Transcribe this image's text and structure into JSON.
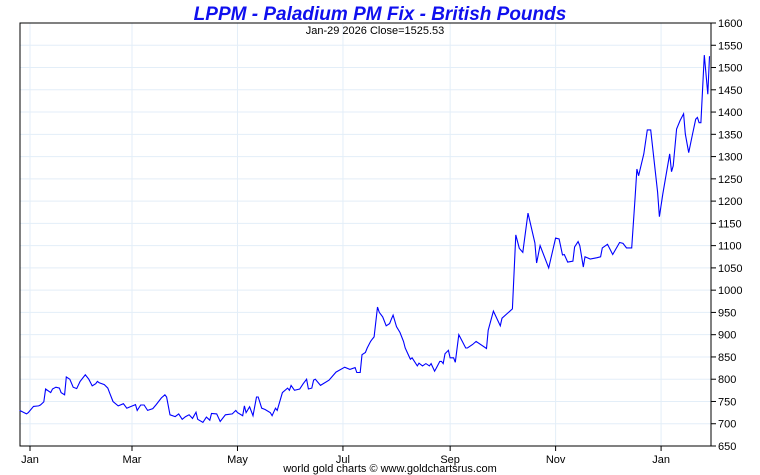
{
  "chart_data": {
    "type": "line",
    "title": "LPPM - Paladium PM Fix - British Pounds",
    "subtitle": "Jan-29  2026   Close=1525.53",
    "footer": "world gold charts © www.goldchartsrus.com",
    "x_unit": "days since Jan 1 2025",
    "xlim": [
      -6,
      399
    ],
    "ylim": [
      650,
      1600
    ],
    "y_ticks": [
      650,
      700,
      750,
      800,
      850,
      900,
      950,
      1000,
      1050,
      1100,
      1150,
      1200,
      1250,
      1300,
      1350,
      1400,
      1450,
      1500,
      1550,
      1600
    ],
    "x_ticks": [
      {
        "label": "Jan",
        "day": 0
      },
      {
        "label": "Mar",
        "day": 59
      },
      {
        "label": "May",
        "day": 120
      },
      {
        "label": "Jul",
        "day": 181
      },
      {
        "label": "Sep",
        "day": 243
      },
      {
        "label": "Nov",
        "day": 304
      },
      {
        "label": "Jan",
        "day": 365
      }
    ],
    "grid": true,
    "line_color": "#0000ff",
    "series": [
      {
        "name": "Palladium PM Fix GBP",
        "points": [
          [
            -6,
            730
          ],
          [
            -2,
            722
          ],
          [
            -1,
            725
          ],
          [
            2,
            739
          ],
          [
            5,
            740
          ],
          [
            6,
            742
          ],
          [
            8,
            749
          ],
          [
            9,
            778
          ],
          [
            12,
            770
          ],
          [
            13,
            778
          ],
          [
            15,
            782
          ],
          [
            17,
            780
          ],
          [
            18,
            770
          ],
          [
            20,
            765
          ],
          [
            21,
            805
          ],
          [
            23,
            800
          ],
          [
            25,
            782
          ],
          [
            27,
            779
          ],
          [
            29,
            795
          ],
          [
            32,
            810
          ],
          [
            34,
            800
          ],
          [
            36,
            785
          ],
          [
            38,
            790
          ],
          [
            39,
            795
          ],
          [
            40,
            792
          ],
          [
            43,
            788
          ],
          [
            45,
            780
          ],
          [
            46,
            770
          ],
          [
            48,
            750
          ],
          [
            51,
            740
          ],
          [
            54,
            745
          ],
          [
            56,
            735
          ],
          [
            58,
            738
          ],
          [
            61,
            743
          ],
          [
            62,
            730
          ],
          [
            64,
            742
          ],
          [
            66,
            742
          ],
          [
            68,
            730
          ],
          [
            71,
            734
          ],
          [
            73,
            743
          ],
          [
            76,
            758
          ],
          [
            78,
            765
          ],
          [
            79,
            760
          ],
          [
            81,
            720
          ],
          [
            84,
            716
          ],
          [
            86,
            722
          ],
          [
            88,
            710
          ],
          [
            90,
            716
          ],
          [
            92,
            720
          ],
          [
            94,
            712
          ],
          [
            96,
            726
          ],
          [
            97,
            710
          ],
          [
            100,
            703
          ],
          [
            102,
            715
          ],
          [
            104,
            708
          ],
          [
            105,
            723
          ],
          [
            108,
            722
          ],
          [
            110,
            705
          ],
          [
            113,
            720
          ],
          [
            117,
            722
          ],
          [
            119,
            730
          ],
          [
            120,
            725
          ],
          [
            123,
            718
          ],
          [
            124,
            740
          ],
          [
            125,
            725
          ],
          [
            127,
            738
          ],
          [
            129,
            718
          ],
          [
            131,
            760
          ],
          [
            132,
            760
          ],
          [
            134,
            735
          ],
          [
            136,
            732
          ],
          [
            139,
            725
          ],
          [
            140,
            718
          ],
          [
            142,
            735
          ],
          [
            143,
            730
          ],
          [
            146,
            770
          ],
          [
            149,
            780
          ],
          [
            150,
            775
          ],
          [
            151,
            786
          ],
          [
            153,
            775
          ],
          [
            156,
            778
          ],
          [
            158,
            790
          ],
          [
            160,
            800
          ],
          [
            161,
            778
          ],
          [
            163,
            780
          ],
          [
            164,
            798
          ],
          [
            165,
            800
          ],
          [
            168,
            786
          ],
          [
            173,
            798
          ],
          [
            177,
            816
          ],
          [
            182,
            827
          ],
          [
            185,
            822
          ],
          [
            188,
            826
          ],
          [
            189,
            815
          ],
          [
            191,
            815
          ],
          [
            192,
            855
          ],
          [
            194,
            860
          ],
          [
            195,
            870
          ],
          [
            197,
            885
          ],
          [
            198,
            890
          ],
          [
            199,
            895
          ],
          [
            201,
            962
          ],
          [
            202,
            950
          ],
          [
            204,
            940
          ],
          [
            206,
            920
          ],
          [
            208,
            925
          ],
          [
            209,
            935
          ],
          [
            210,
            944
          ],
          [
            212,
            918
          ],
          [
            214,
            905
          ],
          [
            216,
            885
          ],
          [
            217,
            870
          ],
          [
            219,
            853
          ],
          [
            220,
            845
          ],
          [
            221,
            848
          ],
          [
            224,
            830
          ],
          [
            225,
            836
          ],
          [
            227,
            830
          ],
          [
            229,
            835
          ],
          [
            231,
            830
          ],
          [
            232,
            835
          ],
          [
            234,
            818
          ],
          [
            235,
            825
          ],
          [
            237,
            840
          ],
          [
            238,
            840
          ],
          [
            239,
            835
          ],
          [
            240,
            857
          ],
          [
            242,
            865
          ],
          [
            243,
            848
          ],
          [
            245,
            848
          ],
          [
            246,
            838
          ],
          [
            248,
            900
          ],
          [
            250,
            885
          ],
          [
            252,
            870
          ],
          [
            253,
            870
          ],
          [
            256,
            878
          ],
          [
            258,
            885
          ],
          [
            264,
            869
          ],
          [
            265,
            910
          ],
          [
            268,
            953
          ],
          [
            272,
            920
          ],
          [
            273,
            937
          ],
          [
            279,
            958
          ],
          [
            281,
            1124
          ],
          [
            283,
            1094
          ],
          [
            285,
            1085
          ],
          [
            288,
            1173
          ],
          [
            292,
            1106
          ],
          [
            293,
            1061
          ],
          [
            295,
            1100
          ],
          [
            300,
            1050
          ],
          [
            304,
            1117
          ],
          [
            306,
            1115
          ],
          [
            308,
            1079
          ],
          [
            309,
            1080
          ],
          [
            311,
            1063
          ],
          [
            314,
            1065
          ],
          [
            315,
            1097
          ],
          [
            317,
            1109
          ],
          [
            318,
            1100
          ],
          [
            320,
            1052
          ],
          [
            321,
            1075
          ],
          [
            324,
            1070
          ],
          [
            328,
            1073
          ],
          [
            330,
            1075
          ],
          [
            331,
            1095
          ],
          [
            334,
            1103
          ],
          [
            337,
            1080
          ],
          [
            341,
            1107
          ],
          [
            343,
            1105
          ],
          [
            345,
            1095
          ],
          [
            348,
            1095
          ],
          [
            350,
            1208
          ],
          [
            351,
            1272
          ],
          [
            352,
            1257
          ],
          [
            355,
            1306
          ],
          [
            357,
            1360
          ],
          [
            359,
            1360
          ],
          [
            363,
            1220
          ],
          [
            364,
            1165
          ],
          [
            366,
            1216
          ],
          [
            370,
            1306
          ],
          [
            371,
            1266
          ],
          [
            372,
            1279
          ],
          [
            374,
            1362
          ],
          [
            376,
            1381
          ],
          [
            378,
            1396
          ],
          [
            379,
            1351
          ],
          [
            381,
            1309
          ],
          [
            383,
            1347
          ],
          [
            385,
            1384
          ],
          [
            386,
            1388
          ],
          [
            387,
            1376
          ],
          [
            388,
            1376
          ],
          [
            390,
            1528
          ],
          [
            392,
            1440
          ],
          [
            393,
            1525.53
          ]
        ]
      }
    ]
  }
}
